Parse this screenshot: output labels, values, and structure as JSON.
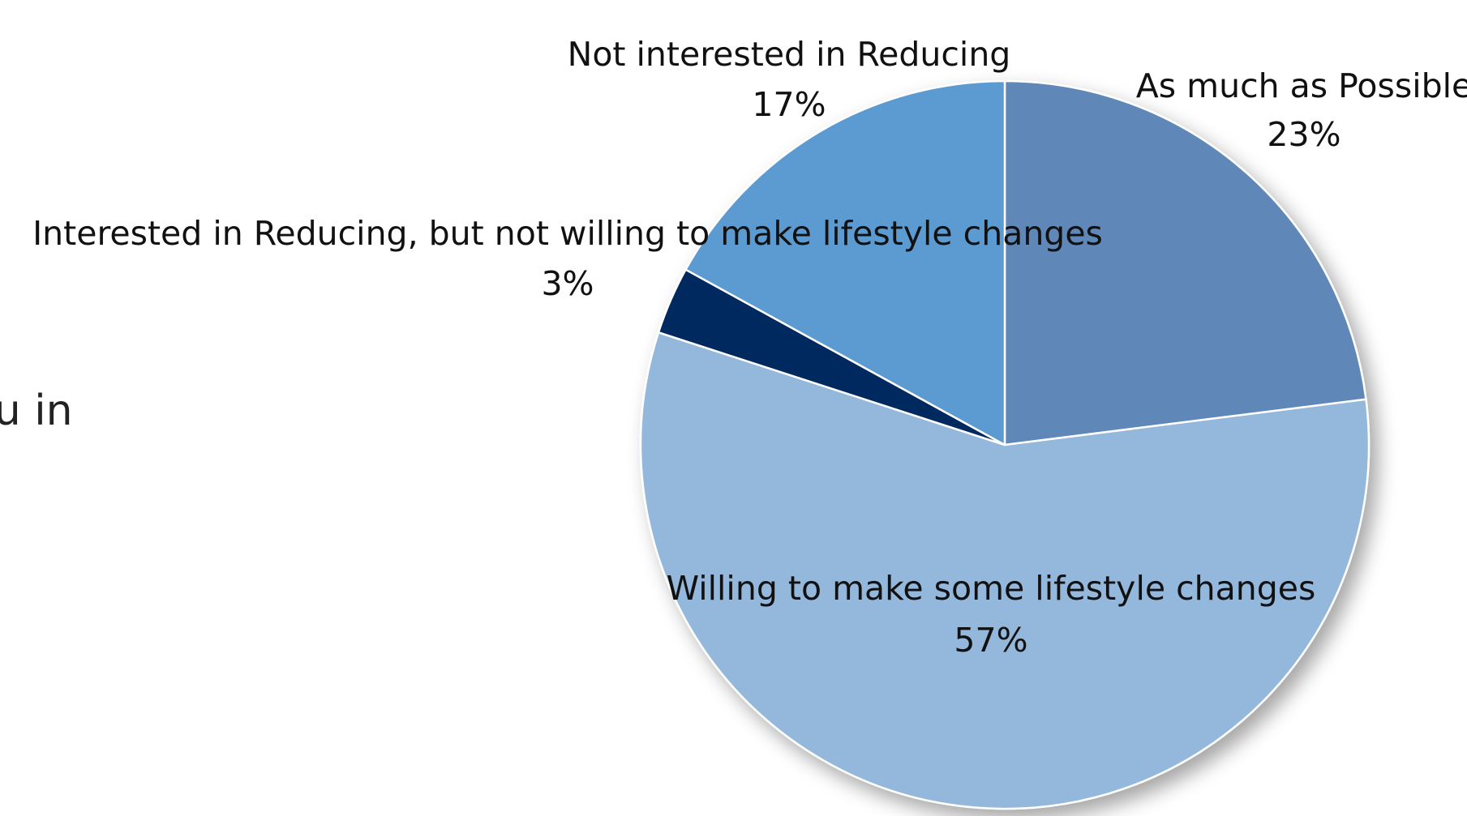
{
  "question": {
    "text": "d are you in\npersonal\nnt?"
  },
  "chart_data": {
    "type": "pie",
    "start_angle": "12 o'clock",
    "direction": "clockwise",
    "slices": [
      {
        "name": "As much as Possible",
        "value": 23,
        "label": "23%",
        "color": "#5f87b8"
      },
      {
        "name": "Willing to make some lifestyle changes",
        "value": 57,
        "label": "57%",
        "color": "#94b8db"
      },
      {
        "name": "Interested in Reducing, but not willing to make lifestyle changes",
        "value": 3,
        "label": "3%",
        "color": "#002b5f"
      },
      {
        "name": "Not interested in Reducing",
        "value": 17,
        "label": "17%",
        "color": "#5b9bd1"
      }
    ]
  }
}
